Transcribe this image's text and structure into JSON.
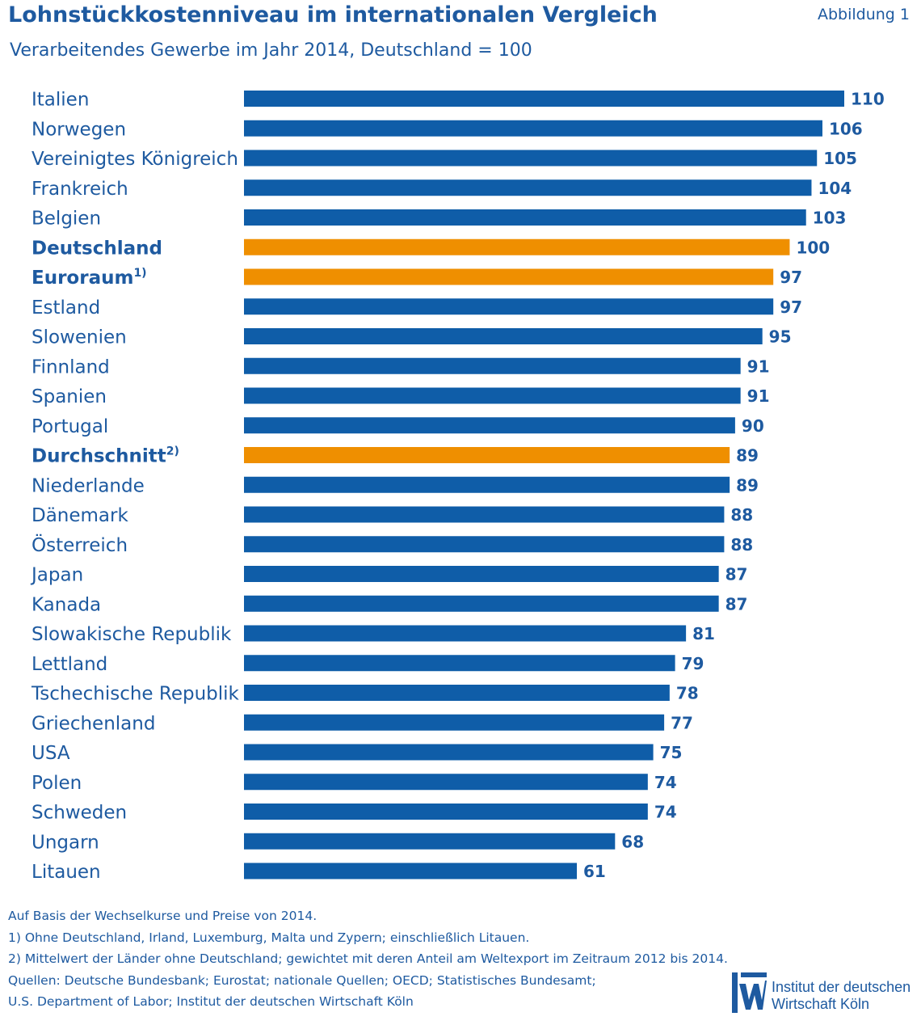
{
  "header": {
    "title": "Lohnstückkostenniveau im internationalen Vergleich",
    "subtitle": "Verarbeitendes Gewerbe im Jahr 2014, Deutschland = 100",
    "figure_label": "Abbildung 1"
  },
  "colors": {
    "default_bar": "#0f5da8",
    "highlight_bar": "#ef8f00",
    "text": "#1e5aa0"
  },
  "chart_data": {
    "type": "bar",
    "orientation": "horizontal",
    "title": "Lohnstückkostenniveau im internationalen Vergleich",
    "subtitle": "Verarbeitendes Gewerbe im Jahr 2014, Deutschland = 100",
    "categories": [
      {
        "label": "Italien",
        "sup": "",
        "bold": false,
        "highlight": false
      },
      {
        "label": "Norwegen",
        "sup": "",
        "bold": false,
        "highlight": false
      },
      {
        "label": "Vereinigtes Königreich",
        "sup": "",
        "bold": false,
        "highlight": false
      },
      {
        "label": "Frankreich",
        "sup": "",
        "bold": false,
        "highlight": false
      },
      {
        "label": "Belgien",
        "sup": "",
        "bold": false,
        "highlight": false
      },
      {
        "label": "Deutschland",
        "sup": "",
        "bold": true,
        "highlight": true
      },
      {
        "label": "Euroraum",
        "sup": "1)",
        "bold": true,
        "highlight": true
      },
      {
        "label": "Estland",
        "sup": "",
        "bold": false,
        "highlight": false
      },
      {
        "label": "Slowenien",
        "sup": "",
        "bold": false,
        "highlight": false
      },
      {
        "label": "Finnland",
        "sup": "",
        "bold": false,
        "highlight": false
      },
      {
        "label": "Spanien",
        "sup": "",
        "bold": false,
        "highlight": false
      },
      {
        "label": "Portugal",
        "sup": "",
        "bold": false,
        "highlight": false
      },
      {
        "label": "Durchschnitt",
        "sup": "2)",
        "bold": true,
        "highlight": true
      },
      {
        "label": "Niederlande",
        "sup": "",
        "bold": false,
        "highlight": false
      },
      {
        "label": "Dänemark",
        "sup": "",
        "bold": false,
        "highlight": false
      },
      {
        "label": "Österreich",
        "sup": "",
        "bold": false,
        "highlight": false
      },
      {
        "label": "Japan",
        "sup": "",
        "bold": false,
        "highlight": false
      },
      {
        "label": "Kanada",
        "sup": "",
        "bold": false,
        "highlight": false
      },
      {
        "label": "Slowakische Republik",
        "sup": "",
        "bold": false,
        "highlight": false
      },
      {
        "label": "Lettland",
        "sup": "",
        "bold": false,
        "highlight": false
      },
      {
        "label": "Tschechische Republik",
        "sup": "",
        "bold": false,
        "highlight": false
      },
      {
        "label": "Griechenland",
        "sup": "",
        "bold": false,
        "highlight": false
      },
      {
        "label": "USA",
        "sup": "",
        "bold": false,
        "highlight": false
      },
      {
        "label": "Polen",
        "sup": "",
        "bold": false,
        "highlight": false
      },
      {
        "label": "Schweden",
        "sup": "",
        "bold": false,
        "highlight": false
      },
      {
        "label": "Ungarn",
        "sup": "",
        "bold": false,
        "highlight": false
      },
      {
        "label": "Litauen",
        "sup": "",
        "bold": false,
        "highlight": false
      }
    ],
    "values": [
      110,
      106,
      105,
      104,
      103,
      100,
      97,
      97,
      95,
      91,
      91,
      90,
      89,
      89,
      88,
      88,
      87,
      87,
      81,
      79,
      78,
      77,
      75,
      74,
      74,
      68,
      61
    ],
    "xlim": [
      0,
      110
    ],
    "grid": false,
    "data_labels": true
  },
  "footnotes": [
    "Auf Basis der Wechselkurse und Preise von 2014.",
    "1) Ohne Deutschland, Irland, Luxemburg, Malta und Zypern; einschließlich Litauen.",
    "2) Mittelwert der Länder ohne Deutschland; gewichtet mit deren Anteil am Weltexport im Zeitraum 2012 bis 2014.",
    "Quellen: Deutsche Bundesbank; Eurostat; nationale Quellen; OECD; Statistisches Bundesamt;",
    "U.S. Department of Labor; Institut der deutschen Wirtschaft Köln"
  ],
  "logo": {
    "icon": "iw-logo-icon",
    "line1": "Institut der deutschen",
    "line2": "Wirtschaft Köln"
  }
}
